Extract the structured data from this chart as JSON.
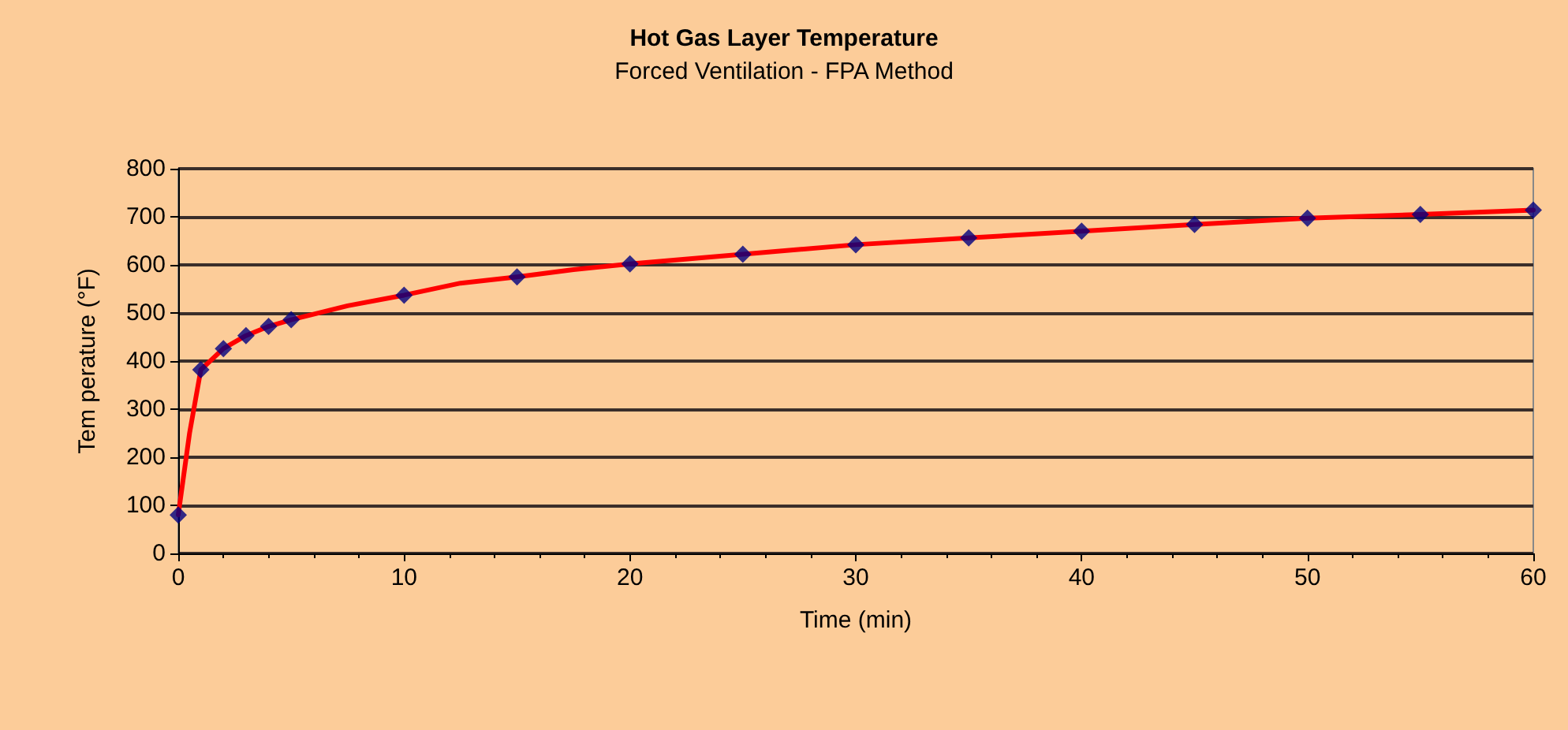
{
  "chart_data": {
    "type": "line",
    "title": "Hot Gas Layer Temperature",
    "subtitle": "Forced Ventilation - FPA Method",
    "xlabel": "Time (min)",
    "ylabel": "Tem perature (°F)",
    "xlim": [
      0,
      60
    ],
    "xticks": [
      0,
      10,
      20,
      30,
      40,
      50,
      60
    ],
    "ylim": [
      0,
      800
    ],
    "yticks": [
      0,
      100,
      200,
      300,
      400,
      500,
      600,
      700,
      800
    ],
    "grid": "y",
    "series": [
      {
        "color": "#ff0000",
        "marker": "none",
        "line_style": "solid",
        "x": [
          0,
          0.5,
          1,
          2,
          3,
          4,
          5,
          7.5,
          10,
          12.5,
          15,
          17.5,
          20,
          25,
          30,
          35,
          40,
          45,
          50,
          55,
          60
        ],
        "values": [
          80,
          250,
          382,
          426,
          453,
          472,
          486,
          515,
          537,
          562,
          575,
          590,
          602,
          622,
          642,
          656,
          670,
          684,
          697,
          705,
          714
        ]
      },
      {
        "type": "scatter",
        "color": "#000080",
        "marker": "diamond",
        "x": [
          0,
          1,
          2,
          3,
          4,
          5,
          10,
          15,
          20,
          25,
          30,
          35,
          40,
          45,
          50,
          55,
          60
        ],
        "values": [
          80,
          382,
          426,
          453,
          472,
          486,
          537,
          575,
          602,
          622,
          642,
          656,
          670,
          684,
          697,
          705,
          714
        ]
      }
    ]
  }
}
